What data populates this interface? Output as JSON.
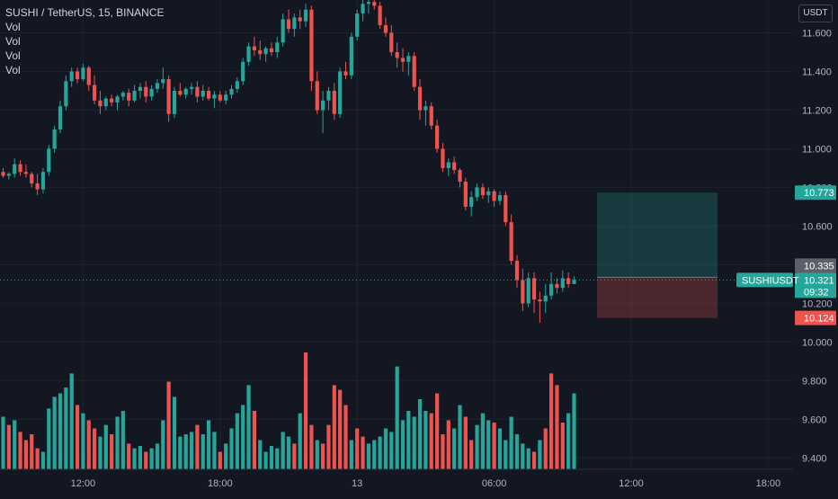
{
  "header": {
    "title": "SUSHI / TetherUS, 15, BINANCE",
    "volume_labels": [
      "Vol",
      "Vol",
      "Vol",
      "Vol"
    ],
    "currency_button": "USDT"
  },
  "price_tags": {
    "take_profit": {
      "label": "10.773",
      "value": 10.773,
      "color": "#26a69a"
    },
    "entry": {
      "label": "10.335",
      "value": 10.335,
      "color": "#5d606b"
    },
    "current": {
      "symbol": "SUSHIUSDT",
      "price": "10.321",
      "value": 10.321,
      "countdown": "09:32",
      "color": "#26a69a"
    },
    "stop_loss": {
      "label": "10.124",
      "value": 10.124,
      "color": "#ef5350"
    }
  },
  "position": {
    "entry": 10.335,
    "target": 10.773,
    "stop": 10.124
  },
  "colors": {
    "up": "#26a69a",
    "down": "#ef5350",
    "background": "#131722",
    "grid": "#1e222d"
  },
  "chart_data": {
    "type": "candlestick",
    "title": "SUSHI / TetherUS, 15, BINANCE",
    "y_axis_unit": "USDT",
    "yticks": [
      "11.600",
      "11.400",
      "11.200",
      "11.000",
      "10.800",
      "10.600",
      "10.400",
      "10.200",
      "10.000",
      "9.800",
      "9.600",
      "9.400"
    ],
    "ylim": [
      9.35,
      11.77
    ],
    "xticks": [
      {
        "label": "12:00",
        "index": 14
      },
      {
        "label": "18:00",
        "index": 38
      },
      {
        "label": "13",
        "index": 62
      },
      {
        "label": "06:00",
        "index": 86
      },
      {
        "label": "12:00",
        "index": 110
      },
      {
        "label": "18:00",
        "index": 134
      }
    ],
    "candles": [
      [
        10.88,
        10.9,
        10.85,
        10.86
      ],
      [
        10.86,
        10.88,
        10.84,
        10.87
      ],
      [
        10.87,
        10.95,
        10.85,
        10.92
      ],
      [
        10.92,
        10.94,
        10.86,
        10.88
      ],
      [
        10.88,
        10.92,
        10.85,
        10.87
      ],
      [
        10.87,
        10.88,
        10.8,
        10.82
      ],
      [
        10.82,
        10.87,
        10.76,
        10.79
      ],
      [
        10.79,
        10.9,
        10.77,
        10.88
      ],
      [
        10.88,
        11.02,
        10.86,
        11.0
      ],
      [
        11.0,
        11.12,
        10.98,
        11.1
      ],
      [
        11.1,
        11.25,
        11.08,
        11.22
      ],
      [
        11.22,
        11.38,
        11.2,
        11.35
      ],
      [
        11.35,
        11.42,
        11.32,
        11.4
      ],
      [
        11.4,
        11.42,
        11.34,
        11.36
      ],
      [
        11.36,
        11.44,
        11.35,
        11.42
      ],
      [
        11.42,
        11.43,
        11.3,
        11.33
      ],
      [
        11.33,
        11.38,
        11.23,
        11.25
      ],
      [
        11.25,
        11.3,
        11.18,
        11.22
      ],
      [
        11.22,
        11.27,
        11.2,
        11.26
      ],
      [
        11.26,
        11.28,
        11.22,
        11.24
      ],
      [
        11.24,
        11.28,
        11.2,
        11.27
      ],
      [
        11.27,
        11.3,
        11.25,
        11.29
      ],
      [
        11.29,
        11.31,
        11.22,
        11.25
      ],
      [
        11.25,
        11.33,
        11.24,
        11.3
      ],
      [
        11.3,
        11.34,
        11.26,
        11.32
      ],
      [
        11.32,
        11.35,
        11.24,
        11.27
      ],
      [
        11.27,
        11.33,
        11.25,
        11.31
      ],
      [
        11.31,
        11.36,
        11.29,
        11.34
      ],
      [
        11.34,
        11.42,
        11.31,
        11.36
      ],
      [
        11.36,
        11.38,
        11.14,
        11.18
      ],
      [
        11.18,
        11.32,
        11.16,
        11.3
      ],
      [
        11.3,
        11.34,
        11.27,
        11.28
      ],
      [
        11.28,
        11.32,
        11.26,
        11.31
      ],
      [
        11.31,
        11.34,
        11.28,
        11.32
      ],
      [
        11.32,
        11.35,
        11.24,
        11.27
      ],
      [
        11.27,
        11.33,
        11.25,
        11.3
      ],
      [
        11.3,
        11.32,
        11.25,
        11.26
      ],
      [
        11.26,
        11.3,
        11.21,
        11.28
      ],
      [
        11.28,
        11.3,
        11.24,
        11.25
      ],
      [
        11.25,
        11.3,
        11.23,
        11.28
      ],
      [
        11.28,
        11.33,
        11.26,
        11.31
      ],
      [
        11.31,
        11.37,
        11.29,
        11.35
      ],
      [
        11.35,
        11.47,
        11.33,
        11.45
      ],
      [
        11.45,
        11.55,
        11.43,
        11.53
      ],
      [
        11.53,
        11.58,
        11.48,
        11.51
      ],
      [
        11.51,
        11.56,
        11.46,
        11.49
      ],
      [
        11.49,
        11.53,
        11.45,
        11.52
      ],
      [
        11.52,
        11.55,
        11.48,
        11.5
      ],
      [
        11.5,
        11.58,
        11.47,
        11.55
      ],
      [
        11.55,
        11.7,
        11.53,
        11.67
      ],
      [
        11.67,
        11.72,
        11.6,
        11.62
      ],
      [
        11.62,
        11.7,
        11.58,
        11.68
      ],
      [
        11.68,
        11.72,
        11.62,
        11.66
      ],
      [
        11.66,
        11.75,
        11.63,
        11.72
      ],
      [
        11.72,
        11.74,
        11.3,
        11.35
      ],
      [
        11.35,
        11.4,
        11.18,
        11.2
      ],
      [
        11.2,
        11.3,
        11.08,
        11.25
      ],
      [
        11.25,
        11.32,
        11.2,
        11.3
      ],
      [
        11.3,
        11.34,
        11.15,
        11.18
      ],
      [
        11.18,
        11.42,
        11.16,
        11.4
      ],
      [
        11.4,
        11.45,
        11.36,
        11.38
      ],
      [
        11.38,
        11.6,
        11.36,
        11.58
      ],
      [
        11.58,
        11.72,
        11.56,
        11.7
      ],
      [
        11.7,
        11.78,
        11.66,
        11.75
      ],
      [
        11.75,
        11.78,
        11.7,
        11.76
      ],
      [
        11.76,
        11.77,
        11.72,
        11.74
      ],
      [
        11.74,
        11.76,
        11.62,
        11.64
      ],
      [
        11.64,
        11.68,
        11.58,
        11.6
      ],
      [
        11.6,
        11.64,
        11.48,
        11.5
      ],
      [
        11.5,
        11.55,
        11.42,
        11.47
      ],
      [
        11.47,
        11.52,
        11.4,
        11.45
      ],
      [
        11.45,
        11.5,
        11.38,
        11.48
      ],
      [
        11.48,
        11.5,
        11.3,
        11.32
      ],
      [
        11.32,
        11.36,
        11.15,
        11.2
      ],
      [
        11.2,
        11.25,
        11.12,
        11.22
      ],
      [
        11.22,
        11.24,
        11.1,
        11.12
      ],
      [
        11.12,
        11.15,
        10.98,
        11.0
      ],
      [
        11.0,
        11.03,
        10.88,
        10.9
      ],
      [
        10.9,
        10.95,
        10.86,
        10.93
      ],
      [
        10.93,
        10.96,
        10.87,
        10.89
      ],
      [
        10.89,
        10.9,
        10.8,
        10.83
      ],
      [
        10.83,
        10.85,
        10.68,
        10.7
      ],
      [
        10.7,
        10.78,
        10.65,
        10.75
      ],
      [
        10.75,
        10.82,
        10.73,
        10.8
      ],
      [
        10.8,
        10.82,
        10.74,
        10.76
      ],
      [
        10.76,
        10.8,
        10.72,
        10.78
      ],
      [
        10.78,
        10.79,
        10.7,
        10.73
      ],
      [
        10.73,
        10.78,
        10.71,
        10.76
      ],
      [
        10.76,
        10.78,
        10.6,
        10.62
      ],
      [
        10.62,
        10.66,
        10.4,
        10.42
      ],
      [
        10.42,
        10.45,
        10.28,
        10.32
      ],
      [
        10.32,
        10.38,
        10.16,
        10.2
      ],
      [
        10.2,
        10.36,
        10.18,
        10.33
      ],
      [
        10.33,
        10.36,
        10.15,
        10.22
      ],
      [
        10.22,
        10.26,
        10.1,
        10.21
      ],
      [
        10.21,
        10.3,
        10.15,
        10.24
      ],
      [
        10.24,
        10.36,
        10.22,
        10.3
      ],
      [
        10.3,
        10.33,
        10.25,
        10.28
      ],
      [
        10.28,
        10.37,
        10.26,
        10.33
      ],
      [
        10.33,
        10.36,
        10.28,
        10.3
      ],
      [
        10.3,
        10.34,
        10.3,
        10.321
      ]
    ],
    "volume": [
      {
        "v": 0.45,
        "dir": "up"
      },
      {
        "v": 0.38,
        "dir": "down"
      },
      {
        "v": 0.42,
        "dir": "up"
      },
      {
        "v": 0.32,
        "dir": "down"
      },
      {
        "v": 0.25,
        "dir": "down"
      },
      {
        "v": 0.3,
        "dir": "down"
      },
      {
        "v": 0.18,
        "dir": "down"
      },
      {
        "v": 0.15,
        "dir": "up"
      },
      {
        "v": 0.52,
        "dir": "up"
      },
      {
        "v": 0.62,
        "dir": "up"
      },
      {
        "v": 0.65,
        "dir": "up"
      },
      {
        "v": 0.7,
        "dir": "up"
      },
      {
        "v": 0.82,
        "dir": "up"
      },
      {
        "v": 0.55,
        "dir": "down"
      },
      {
        "v": 0.48,
        "dir": "up"
      },
      {
        "v": 0.42,
        "dir": "down"
      },
      {
        "v": 0.35,
        "dir": "down"
      },
      {
        "v": 0.28,
        "dir": "up"
      },
      {
        "v": 0.38,
        "dir": "up"
      },
      {
        "v": 0.3,
        "dir": "down"
      },
      {
        "v": 0.45,
        "dir": "up"
      },
      {
        "v": 0.5,
        "dir": "up"
      },
      {
        "v": 0.22,
        "dir": "down"
      },
      {
        "v": 0.18,
        "dir": "up"
      },
      {
        "v": 0.2,
        "dir": "up"
      },
      {
        "v": 0.15,
        "dir": "down"
      },
      {
        "v": 0.18,
        "dir": "up"
      },
      {
        "v": 0.22,
        "dir": "up"
      },
      {
        "v": 0.42,
        "dir": "up"
      },
      {
        "v": 0.75,
        "dir": "down"
      },
      {
        "v": 0.62,
        "dir": "up"
      },
      {
        "v": 0.28,
        "dir": "up"
      },
      {
        "v": 0.3,
        "dir": "up"
      },
      {
        "v": 0.32,
        "dir": "up"
      },
      {
        "v": 0.38,
        "dir": "down"
      },
      {
        "v": 0.3,
        "dir": "up"
      },
      {
        "v": 0.42,
        "dir": "up"
      },
      {
        "v": 0.32,
        "dir": "up"
      },
      {
        "v": 0.15,
        "dir": "down"
      },
      {
        "v": 0.22,
        "dir": "up"
      },
      {
        "v": 0.35,
        "dir": "up"
      },
      {
        "v": 0.48,
        "dir": "up"
      },
      {
        "v": 0.55,
        "dir": "up"
      },
      {
        "v": 0.72,
        "dir": "up"
      },
      {
        "v": 0.5,
        "dir": "down"
      },
      {
        "v": 0.25,
        "dir": "up"
      },
      {
        "v": 0.15,
        "dir": "up"
      },
      {
        "v": 0.2,
        "dir": "up"
      },
      {
        "v": 0.18,
        "dir": "up"
      },
      {
        "v": 0.32,
        "dir": "up"
      },
      {
        "v": 0.28,
        "dir": "up"
      },
      {
        "v": 0.22,
        "dir": "down"
      },
      {
        "v": 0.48,
        "dir": "up"
      },
      {
        "v": 1.0,
        "dir": "down"
      },
      {
        "v": 0.38,
        "dir": "down"
      },
      {
        "v": 0.25,
        "dir": "up"
      },
      {
        "v": 0.22,
        "dir": "down"
      },
      {
        "v": 0.38,
        "dir": "down"
      },
      {
        "v": 0.72,
        "dir": "down"
      },
      {
        "v": 0.68,
        "dir": "down"
      },
      {
        "v": 0.55,
        "dir": "down"
      },
      {
        "v": 0.25,
        "dir": "up"
      },
      {
        "v": 0.35,
        "dir": "down"
      },
      {
        "v": 0.28,
        "dir": "down"
      },
      {
        "v": 0.22,
        "dir": "up"
      },
      {
        "v": 0.25,
        "dir": "up"
      },
      {
        "v": 0.28,
        "dir": "up"
      },
      {
        "v": 0.35,
        "dir": "up"
      },
      {
        "v": 0.32,
        "dir": "up"
      },
      {
        "v": 0.88,
        "dir": "up"
      },
      {
        "v": 0.42,
        "dir": "up"
      },
      {
        "v": 0.5,
        "dir": "up"
      },
      {
        "v": 0.45,
        "dir": "up"
      },
      {
        "v": 0.6,
        "dir": "up"
      },
      {
        "v": 0.5,
        "dir": "up"
      },
      {
        "v": 0.48,
        "dir": "down"
      },
      {
        "v": 0.65,
        "dir": "down"
      },
      {
        "v": 0.3,
        "dir": "down"
      },
      {
        "v": 0.42,
        "dir": "down"
      },
      {
        "v": 0.35,
        "dir": "up"
      },
      {
        "v": 0.55,
        "dir": "up"
      },
      {
        "v": 0.45,
        "dir": "down"
      },
      {
        "v": 0.25,
        "dir": "down"
      },
      {
        "v": 0.38,
        "dir": "up"
      },
      {
        "v": 0.48,
        "dir": "up"
      },
      {
        "v": 0.42,
        "dir": "up"
      },
      {
        "v": 0.4,
        "dir": "down"
      },
      {
        "v": 0.35,
        "dir": "up"
      },
      {
        "v": 0.25,
        "dir": "up"
      },
      {
        "v": 0.45,
        "dir": "up"
      },
      {
        "v": 0.3,
        "dir": "up"
      },
      {
        "v": 0.22,
        "dir": "up"
      },
      {
        "v": 0.18,
        "dir": "up"
      },
      {
        "v": 0.15,
        "dir": "down"
      },
      {
        "v": 0.25,
        "dir": "up"
      },
      {
        "v": 0.35,
        "dir": "down"
      },
      {
        "v": 0.82,
        "dir": "down"
      },
      {
        "v": 0.72,
        "dir": "down"
      },
      {
        "v": 0.4,
        "dir": "down"
      },
      {
        "v": 0.48,
        "dir": "up"
      },
      {
        "v": 0.65,
        "dir": "up"
      }
    ]
  }
}
